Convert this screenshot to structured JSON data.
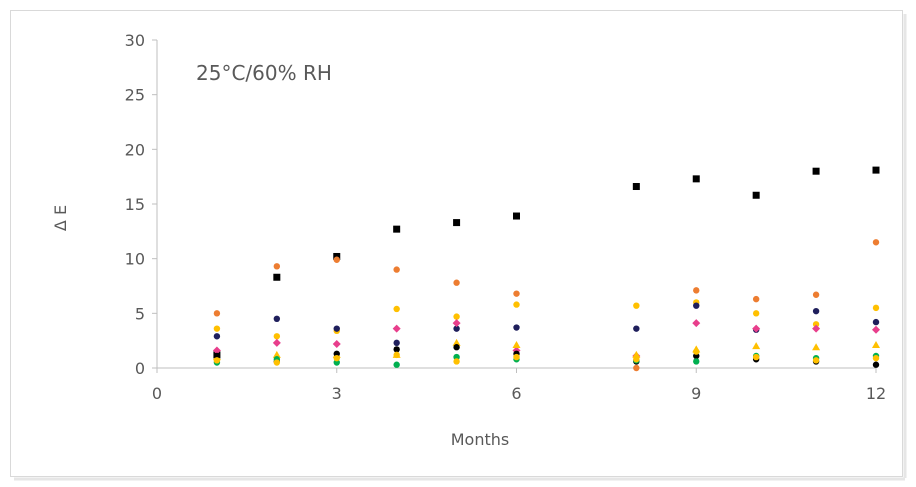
{
  "chart_data": {
    "type": "scatter",
    "title": "",
    "annotation": "25°C/60% RH",
    "xlabel": "Months",
    "ylabel": "Δ E",
    "xlim": [
      0,
      12
    ],
    "ylim": [
      0,
      30
    ],
    "xticks": [
      0,
      3,
      6,
      9,
      12
    ],
    "yticks": [
      0,
      5,
      10,
      15,
      20,
      25,
      30
    ],
    "grid": false,
    "legend": "none",
    "series": [
      {
        "color": "#000000",
        "marker": "square",
        "points": [
          [
            1,
            1.2
          ],
          [
            2,
            8.3
          ],
          [
            3,
            10.2
          ],
          [
            4,
            12.7
          ],
          [
            5,
            13.3
          ],
          [
            6,
            13.9
          ],
          [
            8,
            16.6
          ],
          [
            9,
            17.3
          ],
          [
            10,
            15.8
          ],
          [
            11,
            18.0
          ],
          [
            12,
            18.1
          ]
        ]
      },
      {
        "color": "#ED7D31",
        "marker": "circle",
        "points": [
          [
            1,
            5.0
          ],
          [
            2,
            9.3
          ],
          [
            3,
            9.9
          ],
          [
            4,
            9.0
          ],
          [
            5,
            7.8
          ],
          [
            6,
            6.8
          ],
          [
            8,
            0.0
          ],
          [
            9,
            7.1
          ],
          [
            10,
            6.3
          ],
          [
            11,
            6.7
          ],
          [
            12,
            11.5
          ]
        ]
      },
      {
        "color": "#FFC000",
        "marker": "circle",
        "points": [
          [
            1,
            3.6
          ],
          [
            2,
            2.9
          ],
          [
            3,
            3.4
          ],
          [
            4,
            5.4
          ],
          [
            5,
            4.7
          ],
          [
            6,
            5.8
          ],
          [
            8,
            5.7
          ],
          [
            9,
            6.0
          ],
          [
            10,
            5.0
          ],
          [
            11,
            4.0
          ],
          [
            12,
            5.5
          ]
        ]
      },
      {
        "color": "#1F1F5C",
        "marker": "circle",
        "points": [
          [
            1,
            2.9
          ],
          [
            2,
            4.5
          ],
          [
            3,
            3.6
          ],
          [
            4,
            2.3
          ],
          [
            5,
            3.6
          ],
          [
            6,
            3.7
          ],
          [
            8,
            3.6
          ],
          [
            9,
            5.7
          ],
          [
            10,
            3.5
          ],
          [
            11,
            5.2
          ],
          [
            12,
            4.2
          ]
        ]
      },
      {
        "color": "#E83E8C",
        "marker": "diamond",
        "points": [
          [
            1,
            1.6
          ],
          [
            2,
            2.3
          ],
          [
            3,
            2.2
          ],
          [
            4,
            3.6
          ],
          [
            5,
            4.1
          ],
          [
            6,
            1.6
          ],
          [
            8,
            1.1
          ],
          [
            9,
            4.1
          ],
          [
            10,
            3.6
          ],
          [
            11,
            3.6
          ],
          [
            12,
            3.5
          ]
        ]
      },
      {
        "color": "#FFC000",
        "marker": "triangle",
        "points": [
          [
            1,
            1.0
          ],
          [
            2,
            1.2
          ],
          [
            3,
            1.2
          ],
          [
            4,
            1.2
          ],
          [
            5,
            2.3
          ],
          [
            6,
            2.1
          ],
          [
            8,
            1.2
          ],
          [
            9,
            1.7
          ],
          [
            10,
            2.0
          ],
          [
            11,
            1.9
          ],
          [
            12,
            2.1
          ]
        ]
      },
      {
        "color": "#000000",
        "marker": "circle",
        "points": [
          [
            1,
            1.1
          ],
          [
            2,
            0.6
          ],
          [
            3,
            1.3
          ],
          [
            4,
            1.7
          ],
          [
            5,
            1.9
          ],
          [
            6,
            1.3
          ],
          [
            8,
            0.6
          ],
          [
            9,
            1.1
          ],
          [
            10,
            0.8
          ],
          [
            11,
            0.6
          ],
          [
            12,
            0.3
          ]
        ]
      },
      {
        "color": "#00B050",
        "marker": "circle",
        "points": [
          [
            1,
            0.5
          ],
          [
            2,
            0.8
          ],
          [
            3,
            0.5
          ],
          [
            4,
            0.3
          ],
          [
            5,
            1.0
          ],
          [
            6,
            0.8
          ],
          [
            8,
            0.7
          ],
          [
            9,
            0.6
          ],
          [
            10,
            1.1
          ],
          [
            11,
            0.9
          ],
          [
            12,
            1.1
          ]
        ]
      },
      {
        "color": "#FFC000",
        "marker": "circle",
        "points": [
          [
            1,
            0.7
          ],
          [
            2,
            0.5
          ],
          [
            3,
            0.9
          ],
          [
            4,
            1.2
          ],
          [
            5,
            0.6
          ],
          [
            6,
            1.0
          ],
          [
            8,
            0.8
          ],
          [
            9,
            1.5
          ],
          [
            10,
            1.0
          ],
          [
            11,
            0.7
          ],
          [
            12,
            0.9
          ]
        ]
      }
    ]
  }
}
